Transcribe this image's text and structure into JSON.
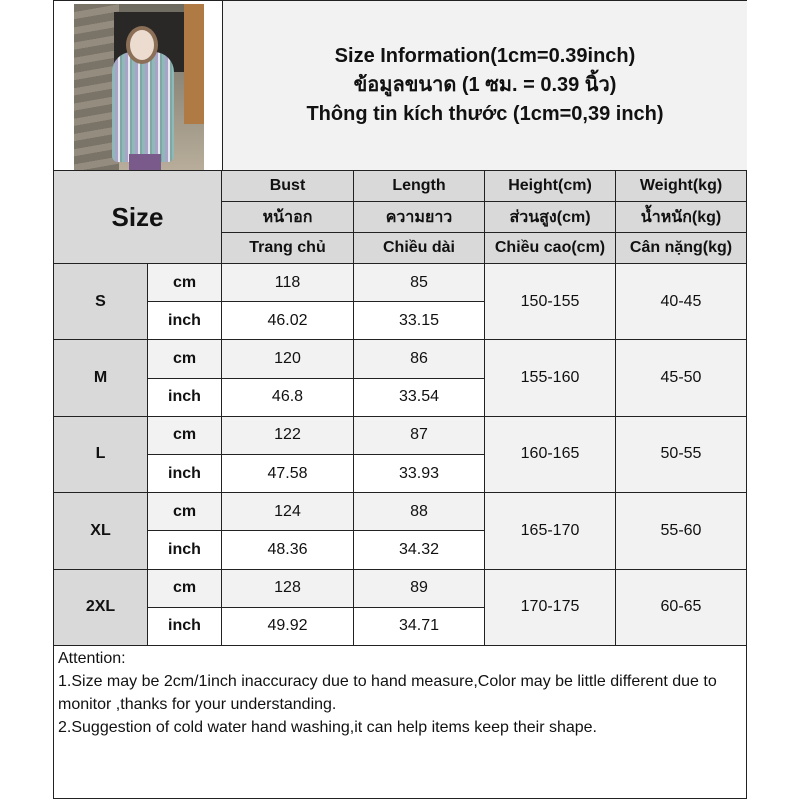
{
  "header": {
    "title_lines": [
      "Size Information(1cm=0.39inch)",
      "ข้อมูลขนาด (1 ซม. = 0.39 นิ้ว)",
      "Thông tin kích thước (1cm=0,39 inch)"
    ]
  },
  "table": {
    "size_label": "Size",
    "columns": [
      {
        "en": "Bust",
        "th": "หน้าอก",
        "vi": "Trang chủ"
      },
      {
        "en": "Length",
        "th": "ความยาว",
        "vi": "Chiều dài"
      },
      {
        "en": "Height(cm)",
        "th": "ส่วนสูง(cm)",
        "vi": "Chiều cao(cm)"
      },
      {
        "en": "Weight(kg)",
        "th": "น้ำหนัก(kg)",
        "vi": "Cân nặng(kg)"
      }
    ],
    "units": [
      "cm",
      "inch"
    ],
    "rows": [
      {
        "size": "S",
        "cm": {
          "bust": "118",
          "length": "85"
        },
        "inch": {
          "bust": "46.02",
          "length": "33.15"
        },
        "height": "150-155",
        "weight": "40-45"
      },
      {
        "size": "M",
        "cm": {
          "bust": "120",
          "length": "86"
        },
        "inch": {
          "bust": "46.8",
          "length": "33.54"
        },
        "height": "155-160",
        "weight": "45-50"
      },
      {
        "size": "L",
        "cm": {
          "bust": "122",
          "length": "87"
        },
        "inch": {
          "bust": "47.58",
          "length": "33.93"
        },
        "height": "160-165",
        "weight": "50-55"
      },
      {
        "size": "XL",
        "cm": {
          "bust": "124",
          "length": "88"
        },
        "inch": {
          "bust": "48.36",
          "length": "34.32"
        },
        "height": "165-170",
        "weight": "55-60"
      },
      {
        "size": "2XL",
        "cm": {
          "bust": "128",
          "length": "89"
        },
        "inch": {
          "bust": "49.92",
          "length": "34.71"
        },
        "height": "170-175",
        "weight": "60-65"
      }
    ]
  },
  "attention": {
    "heading": "Attention:",
    "lines": [
      "1.Size may be 2cm/1inch inaccuracy due to hand measure,Color may be little different due to monitor ,thanks for your understanding.",
      "2.Suggestion of cold water hand washing,it can help items keep their shape."
    ]
  },
  "colors": {
    "header_bg": "#d9d9d9",
    "cm_row_bg": "#f2f2f2",
    "inch_row_bg": "#ffffff",
    "border": "#222222"
  }
}
